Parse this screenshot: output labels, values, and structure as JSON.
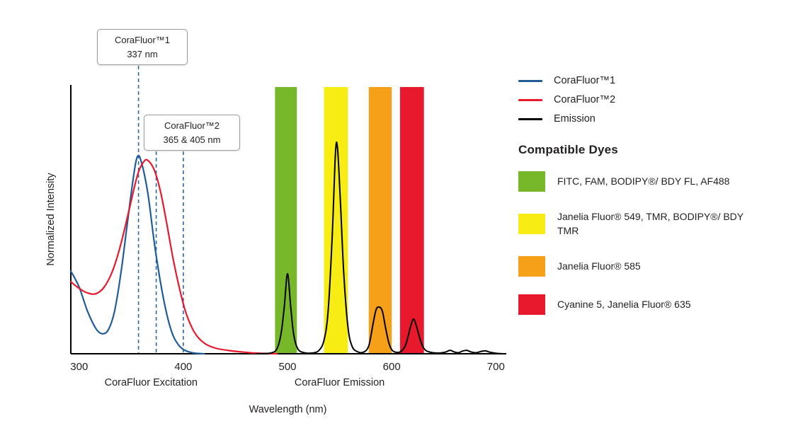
{
  "chart_data": {
    "type": "line",
    "xlabel": "Wavelength (nm)",
    "ylabel": "Normalized Intensity",
    "xlim": [
      292,
      710
    ],
    "ylim": [
      0,
      1.0
    ],
    "xticks": [
      300,
      400,
      500,
      600,
      700
    ],
    "axis_sublabels": [
      {
        "text": "CoraFluor Excitation",
        "nm": 369
      },
      {
        "text": "CoraFluor Emission",
        "nm": 550
      }
    ],
    "colors": {
      "dashed": "#2a6aa5",
      "axis": "#000000"
    },
    "callouts": [
      {
        "title": "CoraFluor™1",
        "value": "337 nm",
        "lines_nm": [
          357
        ]
      },
      {
        "title": "CoraFluor™2",
        "value": "365 & 405 nm",
        "lines_nm": [
          374,
          400
        ]
      }
    ],
    "bands": [
      {
        "key": "green",
        "color": "#76b82a",
        "x0": 488,
        "x1": 509
      },
      {
        "key": "yellow",
        "color": "#f7ec13",
        "x0": 535,
        "x1": 558
      },
      {
        "key": "orange",
        "color": "#f6a01a",
        "x0": 578,
        "x1": 600
      },
      {
        "key": "red",
        "color": "#e8182d",
        "x0": 608,
        "x1": 631
      }
    ],
    "series": [
      {
        "key": "corafluor1",
        "name": "CoraFluor™1",
        "color": "#1f5c99",
        "width": 2.2,
        "points": [
          [
            292,
            0.31
          ],
          [
            300,
            0.25
          ],
          [
            308,
            0.16
          ],
          [
            316,
            0.095
          ],
          [
            322,
            0.075
          ],
          [
            328,
            0.09
          ],
          [
            334,
            0.16
          ],
          [
            340,
            0.3
          ],
          [
            346,
            0.48
          ],
          [
            352,
            0.66
          ],
          [
            356,
            0.74
          ],
          [
            360,
            0.715
          ],
          [
            366,
            0.6
          ],
          [
            372,
            0.42
          ],
          [
            378,
            0.27
          ],
          [
            384,
            0.15
          ],
          [
            390,
            0.07
          ],
          [
            396,
            0.03
          ],
          [
            402,
            0.012
          ],
          [
            410,
            0.003
          ],
          [
            420,
            0.0
          ]
        ]
      },
      {
        "key": "corafluor2",
        "name": "CoraFluor™2",
        "color": "#e8182d",
        "width": 2.2,
        "points": [
          [
            292,
            0.27
          ],
          [
            300,
            0.245
          ],
          [
            308,
            0.228
          ],
          [
            316,
            0.225
          ],
          [
            324,
            0.25
          ],
          [
            332,
            0.31
          ],
          [
            340,
            0.41
          ],
          [
            348,
            0.54
          ],
          [
            356,
            0.67
          ],
          [
            362,
            0.72
          ],
          [
            366,
            0.725
          ],
          [
            372,
            0.69
          ],
          [
            378,
            0.61
          ],
          [
            384,
            0.49
          ],
          [
            390,
            0.36
          ],
          [
            396,
            0.25
          ],
          [
            402,
            0.16
          ],
          [
            408,
            0.1
          ],
          [
            414,
            0.062
          ],
          [
            422,
            0.035
          ],
          [
            432,
            0.02
          ],
          [
            444,
            0.012
          ],
          [
            458,
            0.006
          ],
          [
            472,
            0.002
          ],
          [
            490,
            0.0
          ]
        ]
      },
      {
        "key": "emission",
        "name": "Emission",
        "color": "#000000",
        "width": 2,
        "points": [
          [
            470,
            0.0
          ],
          [
            484,
            0.003
          ],
          [
            490,
            0.02
          ],
          [
            494,
            0.08
          ],
          [
            497,
            0.18
          ],
          [
            500,
            0.3
          ],
          [
            503,
            0.18
          ],
          [
            506,
            0.07
          ],
          [
            510,
            0.018
          ],
          [
            516,
            0.004
          ],
          [
            524,
            0.003
          ],
          [
            530,
            0.012
          ],
          [
            535,
            0.05
          ],
          [
            539,
            0.16
          ],
          [
            543,
            0.45
          ],
          [
            546,
            0.75
          ],
          [
            548,
            0.77
          ],
          [
            551,
            0.55
          ],
          [
            554,
            0.3
          ],
          [
            558,
            0.1
          ],
          [
            562,
            0.028
          ],
          [
            567,
            0.008
          ],
          [
            573,
            0.006
          ],
          [
            578,
            0.03
          ],
          [
            582,
            0.11
          ],
          [
            585,
            0.165
          ],
          [
            588,
            0.175
          ],
          [
            591,
            0.16
          ],
          [
            594,
            0.1
          ],
          [
            597,
            0.045
          ],
          [
            600,
            0.015
          ],
          [
            605,
            0.005
          ],
          [
            610,
            0.012
          ],
          [
            614,
            0.04
          ],
          [
            618,
            0.1
          ],
          [
            621,
            0.13
          ],
          [
            624,
            0.1
          ],
          [
            628,
            0.045
          ],
          [
            632,
            0.015
          ],
          [
            638,
            0.005
          ],
          [
            646,
            0.003
          ],
          [
            652,
            0.007
          ],
          [
            656,
            0.013
          ],
          [
            660,
            0.007
          ],
          [
            664,
            0.004
          ],
          [
            668,
            0.01
          ],
          [
            672,
            0.013
          ],
          [
            676,
            0.007
          ],
          [
            681,
            0.004
          ],
          [
            686,
            0.009
          ],
          [
            690,
            0.011
          ],
          [
            694,
            0.006
          ],
          [
            700,
            0.002
          ],
          [
            708,
            0.0
          ]
        ]
      }
    ]
  },
  "legend": {
    "items": [
      {
        "label": "CoraFluor™1",
        "color": "#1f5c99"
      },
      {
        "label": "CoraFluor™2",
        "color": "#e8182d"
      },
      {
        "label": "Emission",
        "color": "#000000"
      }
    ]
  },
  "dyes": {
    "title": "Compatible Dyes",
    "items": [
      {
        "label": "FITC, FAM, BODIPY®/ BDY FL, AF488",
        "color": "#76b82a"
      },
      {
        "label": "Janelia Fluor® 549, TMR, BODIPY®/ BDY TMR",
        "color": "#f7ec13"
      },
      {
        "label": "Janelia Fluor® 585",
        "color": "#f6a01a"
      },
      {
        "label": "Cyanine 5, Janelia Fluor® 635",
        "color": "#e8182d"
      }
    ]
  }
}
